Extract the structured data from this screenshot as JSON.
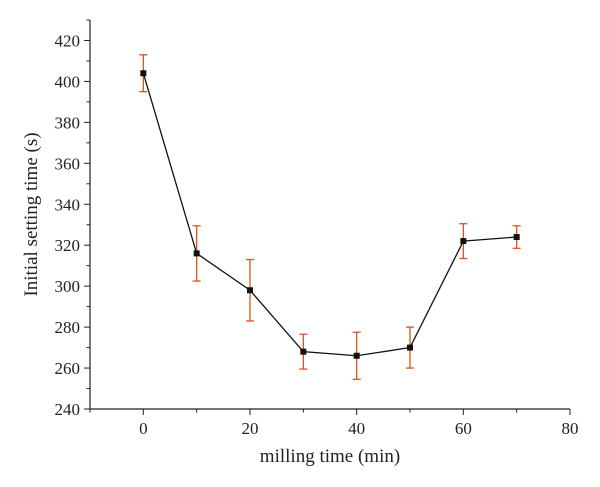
{
  "chart_data": {
    "type": "line",
    "xlabel": "milling time (min)",
    "ylabel": "Initial setting time (s)",
    "xlim": [
      -10,
      80
    ],
    "ylim": [
      240,
      430
    ],
    "xticks": [
      0,
      20,
      40,
      60,
      80
    ],
    "yticks": [
      240,
      260,
      280,
      300,
      320,
      340,
      360,
      380,
      400,
      420
    ],
    "grid": false,
    "series": [
      {
        "x": [
          0,
          10,
          20,
          30,
          40,
          50,
          60,
          70
        ],
        "y": [
          404,
          316,
          298,
          268,
          266,
          270,
          322,
          324
        ],
        "error": [
          9,
          13.5,
          15,
          8.5,
          11.5,
          10,
          8.5,
          5.5
        ],
        "color": "#111111",
        "error_color": "#d9541e"
      }
    ]
  }
}
